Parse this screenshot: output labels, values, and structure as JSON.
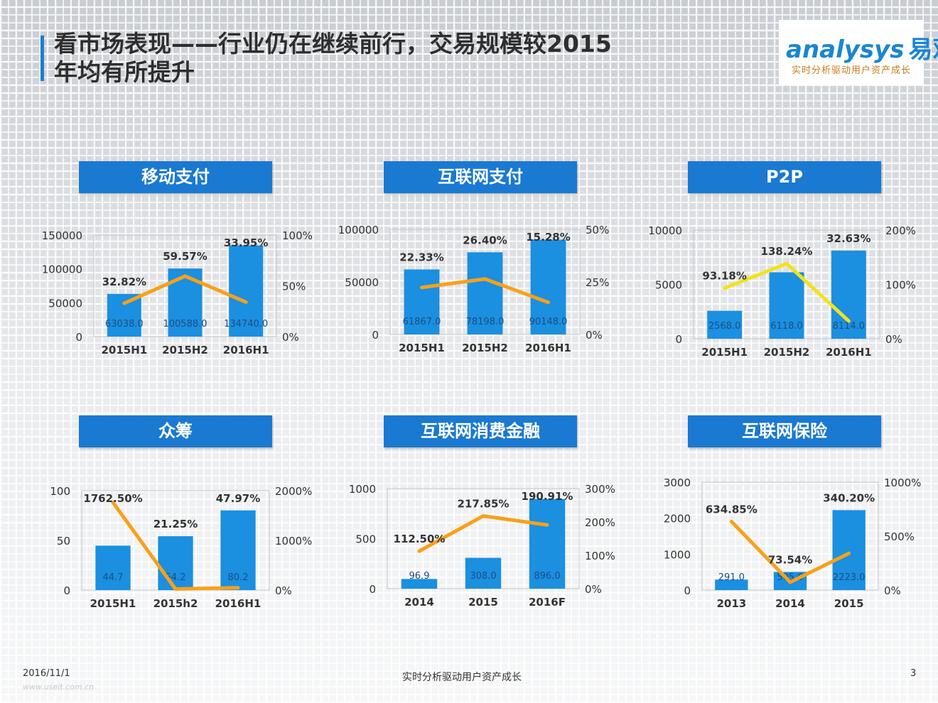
{
  "header": {
    "title": "看市场表现——行业仍在继续前行，交易规模较2015年均有所提升"
  },
  "logo": {
    "name_latin": "analysys",
    "name_cn": "易观",
    "slogan": "实时分析驱动用户资产成长"
  },
  "footer": {
    "date": "2016/11/1",
    "center_text": "实时分析驱动用户资产成长",
    "page_number": "3",
    "watermark": "www.useit.com.cn"
  },
  "colors": {
    "bar": "#1b8fe0",
    "line_orange": "#f7a11a",
    "line_yellow": "#f2e21c",
    "header": "#1a79d1"
  },
  "chart_data": [
    {
      "type": "bar",
      "title": "移动支付",
      "categories": [
        "2015H1",
        "2015H2",
        "2016H1"
      ],
      "bar_labels": [
        "63038.0",
        "100588.0",
        "134740.0"
      ],
      "values": [
        63038.0,
        100588.0,
        134740.0
      ],
      "ylim": [
        0,
        150000
      ],
      "y_ticks": [
        "0",
        "50000",
        "100000",
        "150000"
      ],
      "line": {
        "values": [
          32.82,
          59.57,
          33.95
        ],
        "labels": [
          "32.82%",
          "59.57%",
          "33.95%"
        ],
        "ylim": [
          0,
          100
        ],
        "ticks": [
          "0%",
          "50%",
          "100%"
        ],
        "color": "orange"
      }
    },
    {
      "type": "bar",
      "title": "互联网支付",
      "categories": [
        "2015H1",
        "2015H2",
        "2016H1"
      ],
      "bar_labels": [
        "61867.0",
        "78198.0",
        "90148.0"
      ],
      "values": [
        61867.0,
        78198.0,
        90148.0
      ],
      "ylim": [
        0,
        100000
      ],
      "y_ticks": [
        "0",
        "50000",
        "100000"
      ],
      "line": {
        "values": [
          22.33,
          26.4,
          15.28
        ],
        "labels": [
          "22.33%",
          "26.40%",
          "15.28%"
        ],
        "ylim": [
          0,
          50
        ],
        "ticks": [
          "0%",
          "25%",
          "50%"
        ],
        "color": "orange"
      }
    },
    {
      "type": "bar",
      "title": "P2P",
      "categories": [
        "2015H1",
        "2015H2",
        "2016H1"
      ],
      "bar_labels": [
        "2568.0",
        "6118.0",
        "8114.0"
      ],
      "values": [
        2568.0,
        6118.0,
        8114.0
      ],
      "ylim": [
        0,
        10000
      ],
      "y_ticks": [
        "0",
        "5000",
        "10000"
      ],
      "line": {
        "values": [
          93.18,
          138.24,
          32.63
        ],
        "labels": [
          "93.18%",
          "138.24%",
          "32.63%"
        ],
        "ylim": [
          0,
          200
        ],
        "ticks": [
          "0%",
          "100%",
          "200%"
        ],
        "color": "yellow"
      }
    },
    {
      "type": "bar",
      "title": "众筹",
      "categories": [
        "2015H1",
        "2015h2",
        "2016H1"
      ],
      "bar_labels": [
        "44.7",
        "54.2",
        "80.2"
      ],
      "values": [
        44.7,
        54.2,
        80.2
      ],
      "ylim": [
        0,
        100
      ],
      "y_ticks": [
        "0",
        "50",
        "100"
      ],
      "line": {
        "values": [
          1762.5,
          21.25,
          47.97
        ],
        "labels": [
          "1762.50%",
          "21.25%",
          "47.97%"
        ],
        "ylim": [
          0,
          2000
        ],
        "ticks": [
          "0%",
          "1000%",
          "2000%"
        ],
        "color": "orange"
      }
    },
    {
      "type": "bar",
      "title": "互联网消费金融",
      "categories": [
        "2014",
        "2015",
        "2016F"
      ],
      "bar_labels": [
        "96.9",
        "308.0",
        "896.0"
      ],
      "values": [
        96.9,
        308.0,
        896.0
      ],
      "ylim": [
        0,
        1000
      ],
      "y_ticks": [
        "0",
        "500",
        "1000"
      ],
      "line": {
        "values": [
          112.5,
          217.85,
          190.91
        ],
        "labels": [
          "112.50%",
          "217.85%",
          "190.91%"
        ],
        "ylim": [
          0,
          300
        ],
        "ticks": [
          "0%",
          "100%",
          "200%",
          "300%"
        ],
        "color": "orange"
      }
    },
    {
      "type": "bar",
      "title": "互联网保险",
      "categories": [
        "2013",
        "2014",
        "2015"
      ],
      "bar_labels": [
        "291.0",
        "505.0",
        "2223.0"
      ],
      "values": [
        291.0,
        505.0,
        2223.0
      ],
      "ylim": [
        0,
        3000
      ],
      "y_ticks": [
        "0",
        "1000",
        "2000",
        "3000"
      ],
      "line": {
        "values": [
          634.85,
          73.54,
          340.2
        ],
        "labels": [
          "634.85%",
          "73.54%",
          "340.20%"
        ],
        "ylim": [
          0,
          1000
        ],
        "ticks": [
          "0%",
          "500%",
          "1000%"
        ],
        "color": "orange"
      }
    }
  ]
}
